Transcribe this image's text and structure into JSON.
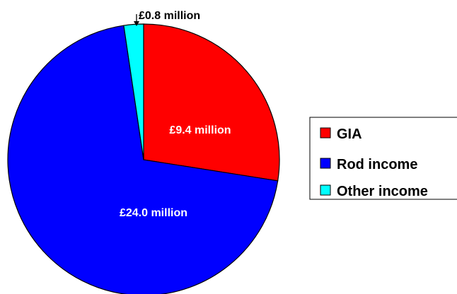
{
  "chart_data": {
    "type": "pie",
    "unit": "£ million",
    "slices": [
      {
        "name": "GIA",
        "value": 9.4,
        "label": "£9.4 million",
        "color": "#ff0000",
        "label_color": "#ffffff"
      },
      {
        "name": "Rod income",
        "value": 24.0,
        "label": "£24.0 million",
        "color": "#0000ff",
        "label_color": "#ffffff"
      },
      {
        "name": "Other income",
        "value": 0.8,
        "label": "£0.8 million",
        "color": "#00ffff",
        "label_color": "#000000"
      }
    ],
    "start_angle": "12 o'clock",
    "direction": "clockwise",
    "legend": {
      "placement": "right",
      "entries": [
        "GIA",
        "Rod income",
        "Other income"
      ]
    }
  }
}
